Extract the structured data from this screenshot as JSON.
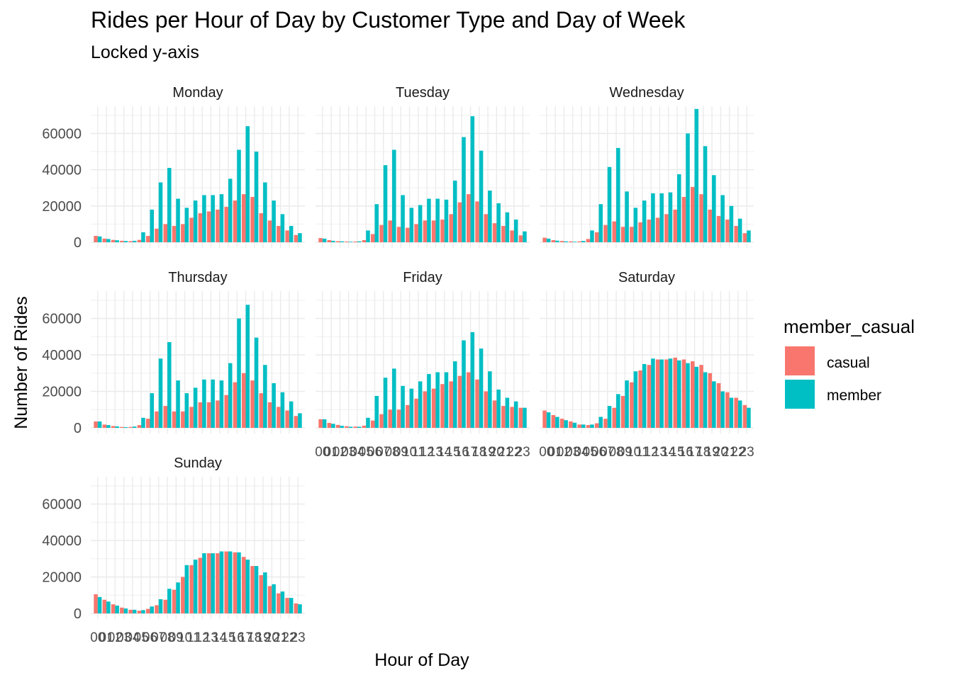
{
  "title": "Rides per Hour of Day by Customer Type and Day of Week",
  "subtitle": "Locked y-axis",
  "chart_data": {
    "type": "bar",
    "layout": "facet_wrap",
    "title": "Rides per Hour of Day by Customer Type and Day of Week",
    "subtitle": "Locked y-axis",
    "xlabel": "Hour of Day",
    "ylabel": "Number of Rides",
    "ylim": [
      0,
      75000
    ],
    "yticks": [
      0,
      20000,
      40000,
      60000
    ],
    "yticklabels": [
      "0",
      "20000",
      "40000",
      "60000"
    ],
    "categories": [
      "00",
      "01",
      "02",
      "03",
      "04",
      "05",
      "06",
      "07",
      "08",
      "09",
      "10",
      "11",
      "12",
      "13",
      "14",
      "15",
      "16",
      "17",
      "18",
      "19",
      "20",
      "21",
      "22",
      "23"
    ],
    "grid": true,
    "legend": {
      "title": "member_casual",
      "position": "right",
      "entries": [
        "casual",
        "member"
      ]
    },
    "colors": {
      "casual": "#F8766D",
      "member": "#00BFC4"
    },
    "facets": [
      {
        "name": "Monday",
        "series": [
          {
            "name": "casual",
            "values": [
              3500,
              2000,
              1300,
              800,
              600,
              1300,
              3500,
              7500,
              10000,
              9000,
              10000,
              13500,
              16000,
              17000,
              18000,
              19500,
              23000,
              26500,
              25000,
              16000,
              12000,
              9000,
              6500,
              4000
            ]
          },
          {
            "name": "member",
            "values": [
              3200,
              1800,
              1100,
              700,
              800,
              5500,
              18000,
              33000,
              41000,
              24000,
              19000,
              23000,
              26000,
              26000,
              26500,
              35000,
              51000,
              64000,
              50000,
              33000,
              23000,
              15500,
              9000,
              5000
            ]
          }
        ]
      },
      {
        "name": "Tuesday",
        "series": [
          {
            "name": "casual",
            "values": [
              2300,
              1200,
              600,
              400,
              400,
              1200,
              4500,
              9500,
              12000,
              8500,
              8000,
              10000,
              12000,
              12000,
              12500,
              15500,
              22000,
              26500,
              22500,
              15500,
              10500,
              9000,
              6500,
              3800
            ]
          },
          {
            "name": "member",
            "values": [
              2000,
              800,
              500,
              300,
              500,
              6500,
              21000,
              42500,
              51000,
              26000,
              19000,
              20500,
              24000,
              24000,
              23500,
              34000,
              58000,
              69500,
              50500,
              28500,
              21500,
              16500,
              12500,
              6000
            ]
          }
        ]
      },
      {
        "name": "Wednesday",
        "series": [
          {
            "name": "casual",
            "values": [
              2500,
              1200,
              700,
              500,
              500,
              1800,
              5500,
              9500,
              11500,
              8500,
              8500,
              11000,
              12500,
              13500,
              15500,
              18000,
              25000,
              30500,
              26500,
              18000,
              14500,
              12500,
              9000,
              5000
            ]
          },
          {
            "name": "member",
            "values": [
              2000,
              900,
              500,
              300,
              700,
              6500,
              21000,
              41500,
              52000,
              28000,
              19000,
              23000,
              27000,
              27000,
              27500,
              37500,
              60000,
              73500,
              53000,
              37000,
              26000,
              20000,
              13000,
              6500
            ]
          }
        ]
      },
      {
        "name": "Thursday",
        "series": [
          {
            "name": "casual",
            "values": [
              3500,
              1800,
              1000,
              500,
              500,
              1500,
              5000,
              9000,
              12000,
              9000,
              9000,
              11500,
              14000,
              14000,
              15000,
              18000,
              25000,
              30000,
              26000,
              19000,
              14000,
              11500,
              9500,
              6500
            ]
          },
          {
            "name": "member",
            "values": [
              3500,
              1500,
              800,
              400,
              700,
              5500,
              19000,
              38000,
              47000,
              26000,
              19000,
              22000,
              26500,
              26500,
              26000,
              35500,
              60000,
              67500,
              49500,
              34500,
              24500,
              19500,
              14500,
              8000
            ]
          }
        ]
      },
      {
        "name": "Friday",
        "series": [
          {
            "name": "casual",
            "values": [
              4700,
              2700,
              1600,
              900,
              700,
              1200,
              4000,
              7500,
              10000,
              10000,
              12500,
              16000,
              20000,
              21500,
              24000,
              25500,
              28500,
              30500,
              26500,
              20000,
              15000,
              12000,
              11500,
              11000
            ]
          },
          {
            "name": "member",
            "values": [
              4700,
              2200,
              1100,
              600,
              600,
              5500,
              17500,
              27500,
              32500,
              23000,
              21500,
              25500,
              29500,
              30500,
              30500,
              36500,
              48000,
              52500,
              43500,
              31000,
              21000,
              16500,
              14500,
              11000
            ]
          }
        ]
      },
      {
        "name": "Saturday",
        "series": [
          {
            "name": "casual",
            "values": [
              9500,
              7000,
              5000,
              3500,
              1800,
              1500,
              2500,
              5000,
              11000,
              17500,
              25000,
              31500,
              34500,
              37500,
              37500,
              38500,
              37500,
              36500,
              34500,
              30000,
              24500,
              19500,
              16500,
              12500
            ]
          },
          {
            "name": "member",
            "values": [
              8500,
              6000,
              4200,
              2800,
              1800,
              1800,
              6000,
              12000,
              18500,
              26000,
              31000,
              35000,
              38000,
              37500,
              38000,
              37000,
              35500,
              33500,
              30500,
              25500,
              20000,
              16500,
              15000,
              11000
            ]
          }
        ]
      },
      {
        "name": "Sunday",
        "series": [
          {
            "name": "casual",
            "values": [
              10500,
              7500,
              5000,
              3200,
              2000,
              1500,
              2500,
              4500,
              7500,
              13000,
              20000,
              26500,
              30500,
              33000,
              33000,
              34000,
              33500,
              31000,
              26000,
              21000,
              15000,
              11000,
              8500,
              5500
            ]
          },
          {
            "name": "member",
            "values": [
              9000,
              6500,
              4300,
              2700,
              2000,
              1800,
              3800,
              7800,
              13500,
              17000,
              26500,
              29500,
              33000,
              33000,
              34000,
              34000,
              33500,
              29500,
              26000,
              22500,
              16000,
              12000,
              8500,
              5000
            ]
          }
        ]
      }
    ]
  }
}
